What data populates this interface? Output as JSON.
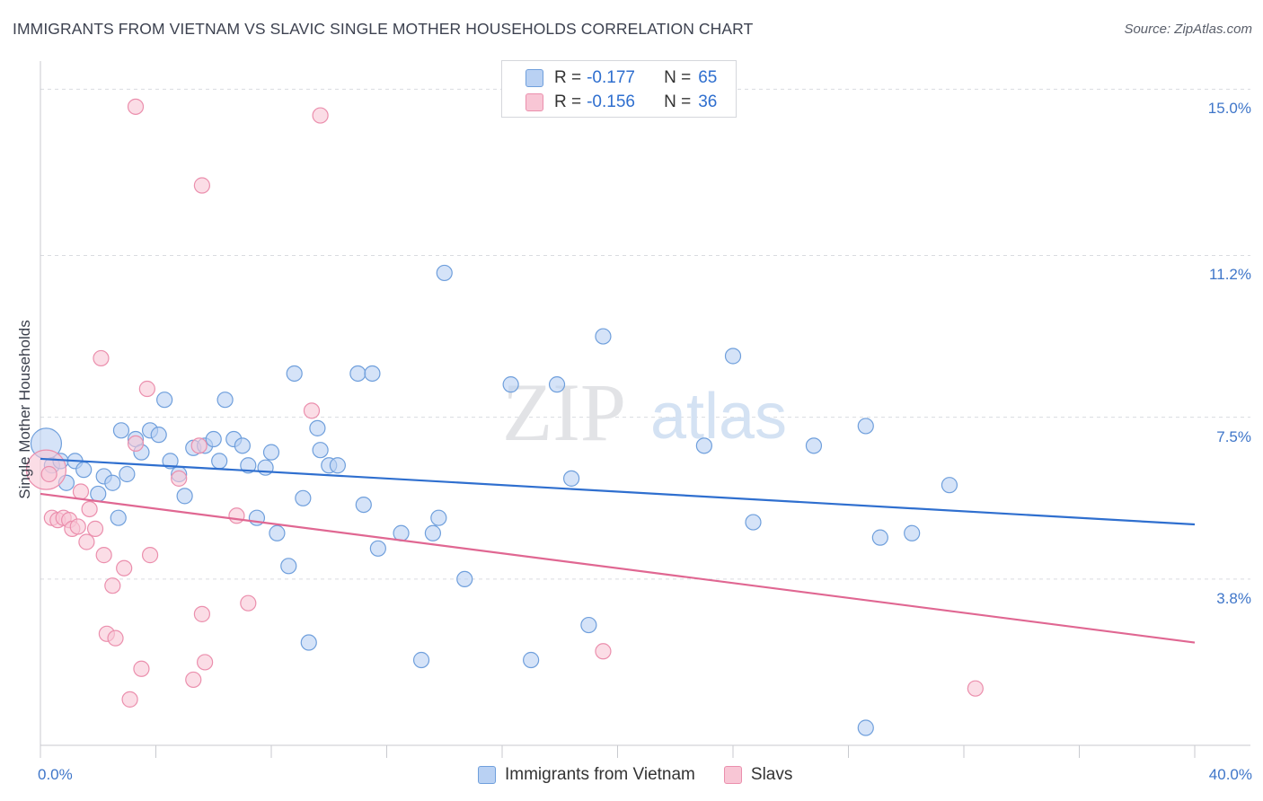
{
  "header": {
    "title": "IMMIGRANTS FROM VIETNAM VS SLAVIC SINGLE MOTHER HOUSEHOLDS CORRELATION CHART",
    "source": "Source: ZipAtlas.com"
  },
  "legend": {
    "rows": [
      {
        "r_label": "R =",
        "r_value": "-0.177",
        "n_label": "N =",
        "n_value": "65"
      },
      {
        "r_label": "R =",
        "r_value": "-0.156",
        "n_label": "N =",
        "n_value": "36"
      }
    ]
  },
  "watermark": {
    "zip": "ZIP",
    "atlas": "atlas"
  },
  "colors": {
    "blue_fill": "#b9d1f3",
    "blue_stroke": "#6f9fdc",
    "blue_line": "#2f6fcf",
    "pink_fill": "#f8c6d5",
    "pink_stroke": "#eb8fad",
    "pink_line": "#e06792",
    "grid": "#d9dbe0",
    "tick_text": "#3f76c9"
  },
  "chart_data": {
    "type": "scatter",
    "title": "IMMIGRANTS FROM VIETNAM VS SLAVIC SINGLE MOTHER HOUSEHOLDS CORRELATION CHART",
    "xlabel": "",
    "ylabel": "Single Mother Households",
    "xlim": [
      0,
      40
    ],
    "ylim": [
      0,
      15.5
    ],
    "x_tick_labels": [
      "0.0%",
      "40.0%"
    ],
    "y_ticks": [
      3.8,
      7.5,
      11.2,
      15.0
    ],
    "y_tick_labels": [
      "3.8%",
      "7.5%",
      "11.2%",
      "15.0%"
    ],
    "grid": true,
    "legend_position": "bottom-center",
    "series": [
      {
        "name": "Immigrants from Vietnam",
        "color": "#6f9fdc",
        "trend": {
          "x": [
            0,
            40
          ],
          "y": [
            6.55,
            5.05
          ]
        },
        "points": [
          [
            0.2,
            6.9
          ],
          [
            0.4,
            6.4
          ],
          [
            0.7,
            6.5
          ],
          [
            0.9,
            6.0
          ],
          [
            1.2,
            6.5
          ],
          [
            1.5,
            6.3
          ],
          [
            2.0,
            5.75
          ],
          [
            2.2,
            6.15
          ],
          [
            2.5,
            6.0
          ],
          [
            2.7,
            5.2
          ],
          [
            2.8,
            7.2
          ],
          [
            3.0,
            6.2
          ],
          [
            3.3,
            7.0
          ],
          [
            3.5,
            6.7
          ],
          [
            3.8,
            7.2
          ],
          [
            4.1,
            7.1
          ],
          [
            4.3,
            7.9
          ],
          [
            4.5,
            6.5
          ],
          [
            4.8,
            6.2
          ],
          [
            5.0,
            5.7
          ],
          [
            5.3,
            6.8
          ],
          [
            5.7,
            6.85
          ],
          [
            6.0,
            7.0
          ],
          [
            6.2,
            6.5
          ],
          [
            6.4,
            7.9
          ],
          [
            6.7,
            7.0
          ],
          [
            7.0,
            6.85
          ],
          [
            7.2,
            6.4
          ],
          [
            7.5,
            5.2
          ],
          [
            7.8,
            6.35
          ],
          [
            8.0,
            6.7
          ],
          [
            8.2,
            4.85
          ],
          [
            8.6,
            4.1
          ],
          [
            8.8,
            8.5
          ],
          [
            9.1,
            5.65
          ],
          [
            9.3,
            2.35
          ],
          [
            9.6,
            7.25
          ],
          [
            9.7,
            6.75
          ],
          [
            10.0,
            6.4
          ],
          [
            10.3,
            6.4
          ],
          [
            11.0,
            8.5
          ],
          [
            11.2,
            5.5
          ],
          [
            11.5,
            8.5
          ],
          [
            11.7,
            4.5
          ],
          [
            12.5,
            4.85
          ],
          [
            13.2,
            1.95
          ],
          [
            13.6,
            4.85
          ],
          [
            13.8,
            5.2
          ],
          [
            14.0,
            10.8
          ],
          [
            14.7,
            3.8
          ],
          [
            16.3,
            8.25
          ],
          [
            17.0,
            1.95
          ],
          [
            17.9,
            8.25
          ],
          [
            18.4,
            6.1
          ],
          [
            19.0,
            2.75
          ],
          [
            19.5,
            9.35
          ],
          [
            23.0,
            6.85
          ],
          [
            24.0,
            8.9
          ],
          [
            24.7,
            5.1
          ],
          [
            26.8,
            6.85
          ],
          [
            28.6,
            7.3
          ],
          [
            28.6,
            0.4
          ],
          [
            29.1,
            4.75
          ],
          [
            30.2,
            4.85
          ],
          [
            31.5,
            5.95
          ]
        ]
      },
      {
        "name": "Slavs",
        "color": "#eb8fad",
        "trend": {
          "x": [
            0,
            40
          ],
          "y": [
            5.75,
            2.35
          ]
        },
        "points": [
          [
            0.2,
            6.3
          ],
          [
            0.3,
            6.2
          ],
          [
            0.4,
            5.2
          ],
          [
            0.6,
            5.15
          ],
          [
            0.8,
            5.2
          ],
          [
            1.0,
            5.15
          ],
          [
            1.1,
            4.95
          ],
          [
            1.3,
            5.0
          ],
          [
            1.4,
            5.8
          ],
          [
            1.6,
            4.65
          ],
          [
            1.7,
            5.4
          ],
          [
            1.9,
            4.95
          ],
          [
            2.1,
            8.85
          ],
          [
            2.2,
            4.35
          ],
          [
            2.3,
            2.55
          ],
          [
            2.5,
            3.65
          ],
          [
            2.6,
            2.45
          ],
          [
            2.9,
            4.05
          ],
          [
            3.1,
            1.05
          ],
          [
            3.3,
            6.9
          ],
          [
            3.5,
            1.75
          ],
          [
            3.7,
            8.15
          ],
          [
            3.8,
            4.35
          ],
          [
            3.3,
            14.6
          ],
          [
            4.8,
            6.1
          ],
          [
            5.3,
            1.5
          ],
          [
            5.5,
            6.85
          ],
          [
            5.6,
            12.8
          ],
          [
            5.6,
            3.0
          ],
          [
            5.7,
            1.9
          ],
          [
            6.8,
            5.25
          ],
          [
            7.2,
            3.25
          ],
          [
            9.4,
            7.65
          ],
          [
            9.7,
            14.4
          ],
          [
            19.5,
            2.15
          ],
          [
            32.4,
            1.3
          ]
        ]
      }
    ]
  }
}
